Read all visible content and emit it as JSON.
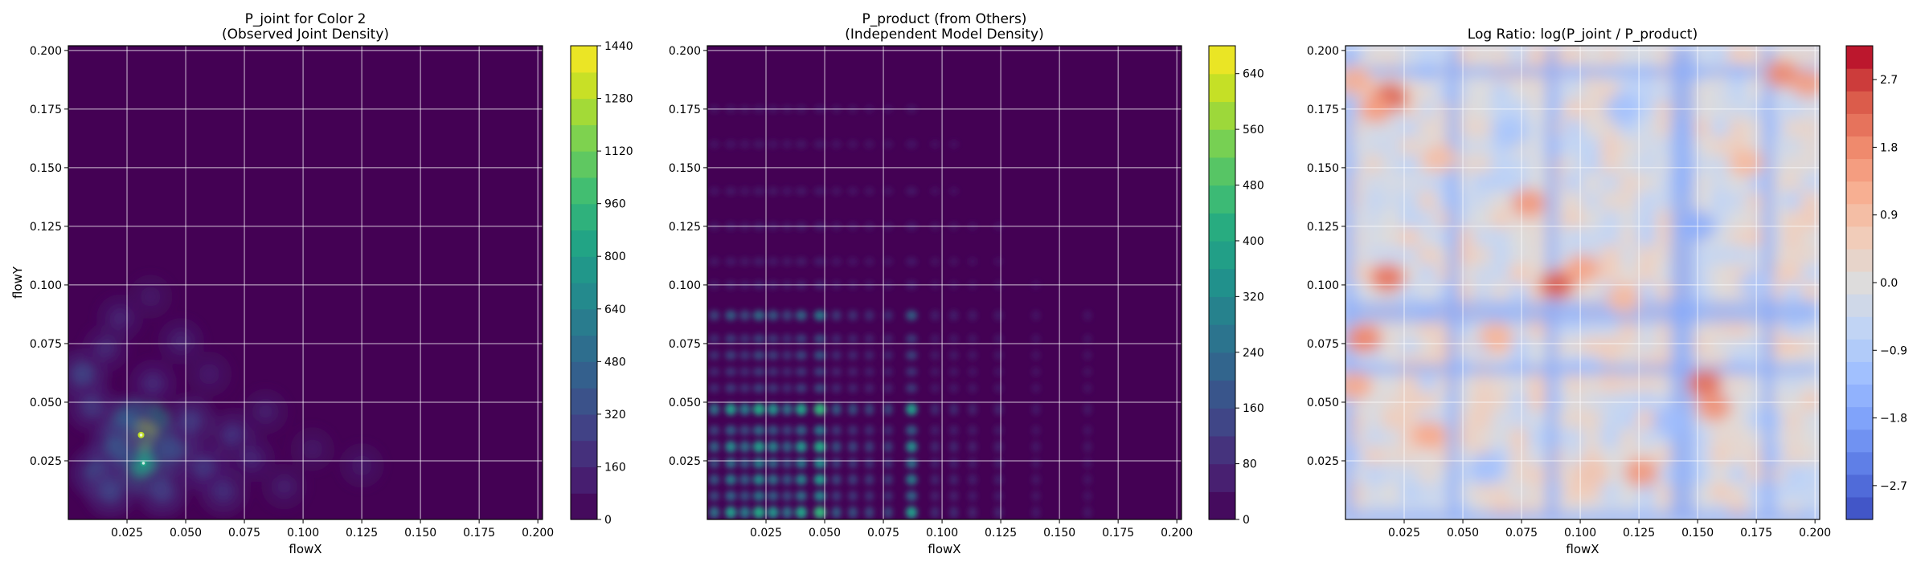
{
  "chart_data": [
    {
      "type": "heatmap",
      "title_line1": "P_joint for Color 2",
      "title_line2": "(Observed Joint Density)",
      "xlabel": "flowX",
      "ylabel": "flowY",
      "xlim": [
        0,
        0.202
      ],
      "ylim": [
        0,
        0.202
      ],
      "xticks": [
        0.025,
        0.05,
        0.075,
        0.1,
        0.125,
        0.15,
        0.175,
        0.2
      ],
      "xtick_labels": [
        "0.025",
        "0.050",
        "0.075",
        "0.100",
        "0.125",
        "0.150",
        "0.175",
        "0.200"
      ],
      "yticks": [
        0.025,
        0.05,
        0.075,
        0.1,
        0.125,
        0.15,
        0.175,
        0.2
      ],
      "ytick_labels": [
        "0.025",
        "0.050",
        "0.075",
        "0.100",
        "0.125",
        "0.150",
        "0.175",
        "0.200"
      ],
      "colormap": "viridis",
      "grid": true,
      "colorbar": {
        "ticks": [
          0,
          160,
          320,
          480,
          640,
          800,
          960,
          1120,
          1280,
          1440
        ],
        "tick_labels": [
          "0",
          "160",
          "320",
          "480",
          "640",
          "800",
          "960",
          "1120",
          "1280",
          "1440"
        ],
        "range": [
          0,
          1440
        ],
        "levels": 18
      },
      "hotspots": [
        {
          "x": 0.031,
          "y": 0.036,
          "value": 1300
        },
        {
          "x": 0.032,
          "y": 0.024,
          "value": 820
        },
        {
          "x": 0.025,
          "y": 0.041,
          "value": 420
        },
        {
          "x": 0.02,
          "y": 0.03,
          "value": 380
        },
        {
          "x": 0.045,
          "y": 0.03,
          "value": 340
        },
        {
          "x": 0.012,
          "y": 0.02,
          "value": 330
        },
        {
          "x": 0.006,
          "y": 0.062,
          "value": 300
        },
        {
          "x": 0.018,
          "y": 0.012,
          "value": 300
        },
        {
          "x": 0.04,
          "y": 0.012,
          "value": 280
        },
        {
          "x": 0.052,
          "y": 0.042,
          "value": 260
        },
        {
          "x": 0.058,
          "y": 0.022,
          "value": 250
        },
        {
          "x": 0.01,
          "y": 0.048,
          "value": 240
        },
        {
          "x": 0.07,
          "y": 0.036,
          "value": 220
        },
        {
          "x": 0.066,
          "y": 0.012,
          "value": 200
        },
        {
          "x": 0.036,
          "y": 0.058,
          "value": 180
        },
        {
          "x": 0.016,
          "y": 0.073,
          "value": 170
        },
        {
          "x": 0.078,
          "y": 0.026,
          "value": 160
        },
        {
          "x": 0.022,
          "y": 0.086,
          "value": 150
        },
        {
          "x": 0.048,
          "y": 0.076,
          "value": 140
        },
        {
          "x": 0.092,
          "y": 0.014,
          "value": 120
        },
        {
          "x": 0.084,
          "y": 0.046,
          "value": 120
        },
        {
          "x": 0.06,
          "y": 0.062,
          "value": 110
        },
        {
          "x": 0.125,
          "y": 0.023,
          "value": 100
        },
        {
          "x": 0.035,
          "y": 0.095,
          "value": 90
        },
        {
          "x": 0.104,
          "y": 0.03,
          "value": 90
        }
      ]
    },
    {
      "type": "heatmap",
      "title_line1": "P_product (from Others)",
      "title_line2": "(Independent Model Density)",
      "xlabel": "flowX",
      "ylabel": "",
      "xlim": [
        0,
        0.202
      ],
      "ylim": [
        0,
        0.202
      ],
      "xticks": [
        0.025,
        0.05,
        0.075,
        0.1,
        0.125,
        0.15,
        0.175,
        0.2
      ],
      "xtick_labels": [
        "0.025",
        "0.050",
        "0.075",
        "0.100",
        "0.125",
        "0.150",
        "0.175",
        "0.200"
      ],
      "yticks": [
        0.025,
        0.05,
        0.075,
        0.1,
        0.125,
        0.15,
        0.175,
        0.2
      ],
      "ytick_labels": [
        "0.025",
        "0.050",
        "0.075",
        "0.100",
        "0.125",
        "0.150",
        "0.175",
        "0.200"
      ],
      "colormap": "viridis",
      "grid": true,
      "colorbar": {
        "ticks": [
          0,
          80,
          160,
          240,
          320,
          400,
          480,
          560,
          640
        ],
        "tick_labels": [
          "0",
          "80",
          "160",
          "240",
          "320",
          "400",
          "480",
          "560",
          "640"
        ],
        "range": [
          0,
          680
        ],
        "levels": 17
      },
      "marginal_x_peaks": [
        {
          "x": 0.003,
          "w": 0.55
        },
        {
          "x": 0.01,
          "w": 0.75
        },
        {
          "x": 0.016,
          "w": 0.6
        },
        {
          "x": 0.022,
          "w": 0.85
        },
        {
          "x": 0.028,
          "w": 0.7
        },
        {
          "x": 0.034,
          "w": 0.55
        },
        {
          "x": 0.04,
          "w": 0.8
        },
        {
          "x": 0.048,
          "w": 0.95
        },
        {
          "x": 0.055,
          "w": 0.45
        },
        {
          "x": 0.062,
          "w": 0.4
        },
        {
          "x": 0.069,
          "w": 0.35
        },
        {
          "x": 0.077,
          "w": 0.35
        },
        {
          "x": 0.087,
          "w": 0.75
        },
        {
          "x": 0.097,
          "w": 0.2
        },
        {
          "x": 0.105,
          "w": 0.2
        },
        {
          "x": 0.113,
          "w": 0.15
        },
        {
          "x": 0.124,
          "w": 0.15
        },
        {
          "x": 0.14,
          "w": 0.08
        },
        {
          "x": 0.162,
          "w": 0.06
        }
      ],
      "marginal_y_peaks": [
        {
          "y": 0.003,
          "w": 0.9
        },
        {
          "y": 0.01,
          "w": 0.6
        },
        {
          "y": 0.017,
          "w": 0.7
        },
        {
          "y": 0.024,
          "w": 0.65
        },
        {
          "y": 0.031,
          "w": 0.8
        },
        {
          "y": 0.038,
          "w": 0.55
        },
        {
          "y": 0.047,
          "w": 0.9
        },
        {
          "y": 0.056,
          "w": 0.35
        },
        {
          "y": 0.063,
          "w": 0.3
        },
        {
          "y": 0.07,
          "w": 0.4
        },
        {
          "y": 0.077,
          "w": 0.35
        },
        {
          "y": 0.087,
          "w": 0.55
        },
        {
          "y": 0.1,
          "w": 0.15
        },
        {
          "y": 0.11,
          "w": 0.1
        },
        {
          "y": 0.125,
          "w": 0.1
        },
        {
          "y": 0.14,
          "w": 0.07
        },
        {
          "y": 0.16,
          "w": 0.06
        },
        {
          "y": 0.175,
          "w": 0.04
        }
      ]
    },
    {
      "type": "heatmap",
      "title_line1": "Log Ratio: log(P_joint / P_product)",
      "title_line2": "",
      "xlabel": "flowX",
      "ylabel": "",
      "xlim": [
        0,
        0.202
      ],
      "ylim": [
        0,
        0.202
      ],
      "xticks": [
        0.025,
        0.05,
        0.075,
        0.1,
        0.125,
        0.15,
        0.175,
        0.2
      ],
      "xtick_labels": [
        "0.025",
        "0.050",
        "0.075",
        "0.100",
        "0.125",
        "0.150",
        "0.175",
        "0.200"
      ],
      "yticks": [
        0.025,
        0.05,
        0.075,
        0.1,
        0.125,
        0.15,
        0.175,
        0.2
      ],
      "ytick_labels": [
        "0.025",
        "0.050",
        "0.075",
        "0.100",
        "0.125",
        "0.150",
        "0.175",
        "0.200"
      ],
      "colormap": "coolwarm",
      "grid": true,
      "colorbar": {
        "ticks": [
          -2.7,
          -1.8,
          -0.9,
          0.0,
          0.9,
          1.8,
          2.7
        ],
        "tick_labels": [
          "−2.7",
          "−1.8",
          "−0.9",
          "0.0",
          "0.9",
          "1.8",
          "2.7"
        ],
        "range": [
          -3.15,
          3.15
        ],
        "levels": 21
      },
      "blue_bands_x": [
        0.001,
        0.046,
        0.088,
        0.141,
        0.146,
        0.18
      ],
      "blue_bands_y": [
        0.001,
        0.064,
        0.086,
        0.091,
        0.191
      ],
      "red_blobs": [
        {
          "x": 0.019,
          "y": 0.18,
          "value": 2.4
        },
        {
          "x": 0.013,
          "y": 0.175,
          "value": 1.5
        },
        {
          "x": 0.004,
          "y": 0.187,
          "value": 1.2
        },
        {
          "x": 0.186,
          "y": 0.19,
          "value": 1.8
        },
        {
          "x": 0.197,
          "y": 0.186,
          "value": 1.5
        },
        {
          "x": 0.008,
          "y": 0.077,
          "value": 1.9
        },
        {
          "x": 0.004,
          "y": 0.057,
          "value": 1.3
        },
        {
          "x": 0.018,
          "y": 0.103,
          "value": 2.1
        },
        {
          "x": 0.09,
          "y": 0.1,
          "value": 2.4
        },
        {
          "x": 0.101,
          "y": 0.107,
          "value": 1.4
        },
        {
          "x": 0.078,
          "y": 0.135,
          "value": 1.6
        },
        {
          "x": 0.153,
          "y": 0.058,
          "value": 2.2
        },
        {
          "x": 0.157,
          "y": 0.048,
          "value": 1.7
        },
        {
          "x": 0.126,
          "y": 0.02,
          "value": 1.6
        },
        {
          "x": 0.064,
          "y": 0.078,
          "value": 1.1
        },
        {
          "x": 0.036,
          "y": 0.036,
          "value": 1.3
        },
        {
          "x": 0.171,
          "y": 0.152,
          "value": 1.0
        },
        {
          "x": 0.04,
          "y": 0.154,
          "value": 0.9
        },
        {
          "x": 0.118,
          "y": 0.094,
          "value": 1.0
        },
        {
          "x": 0.105,
          "y": 0.02,
          "value": 0.8
        }
      ],
      "blue_blobs": [
        {
          "x": 0.15,
          "y": 0.125,
          "value": -1.6
        },
        {
          "x": 0.138,
          "y": 0.042,
          "value": -1.3
        },
        {
          "x": 0.07,
          "y": 0.165,
          "value": -1.1
        },
        {
          "x": 0.118,
          "y": 0.175,
          "value": -1.2
        },
        {
          "x": 0.06,
          "y": 0.022,
          "value": -1.2
        },
        {
          "x": 0.175,
          "y": 0.1,
          "value": -1.0
        }
      ]
    }
  ]
}
